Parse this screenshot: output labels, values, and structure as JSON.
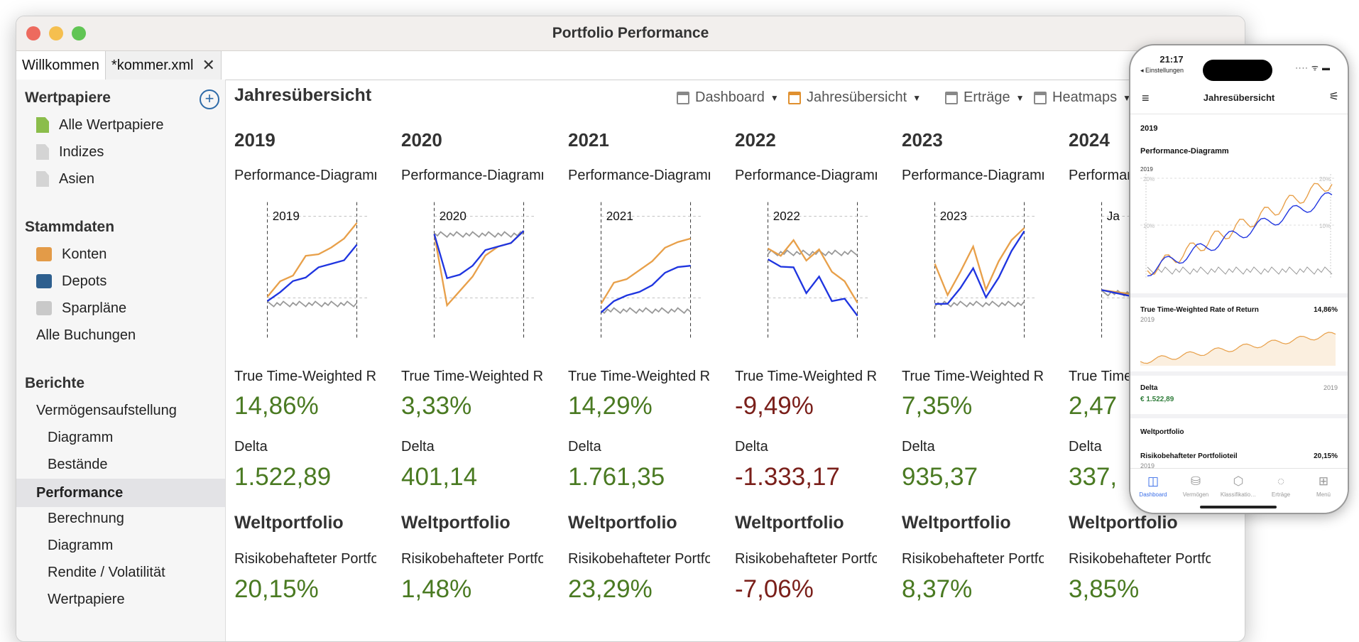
{
  "window": {
    "title": "Portfolio Performance"
  },
  "tabs": [
    {
      "label": "Willkommen"
    },
    {
      "label": "*kommer.xml"
    }
  ],
  "sidebar": {
    "wertpapiere": {
      "heading": "Wertpapiere",
      "items": [
        "Alle Wertpapiere",
        "Indizes",
        "Asien"
      ]
    },
    "stammdaten": {
      "heading": "Stammdaten",
      "items": [
        "Konten",
        "Depots",
        "Sparpläne"
      ],
      "extra": "Alle Buchungen"
    },
    "berichte": {
      "heading": "Berichte",
      "items": [
        "Vermögensaufstellung",
        "Diagramm",
        "Bestände",
        "Performance",
        "Berechnung",
        "Diagramm",
        "Rendite / Volatilität",
        "Wertpapiere"
      ]
    }
  },
  "main": {
    "title": "Jahresübersicht",
    "nav": [
      {
        "label": "Dashboard"
      },
      {
        "label": "Jahresübersicht"
      },
      {
        "label": "Erträge"
      },
      {
        "label": "Heatmaps"
      }
    ],
    "labels": {
      "chart": "Performance-Diagramm",
      "ttwror": "True Time-Weighted Rate of Return",
      "delta": "Delta",
      "group": "Weltportfolio",
      "risk": "Risikobehafteter Portfolioteil"
    },
    "years": [
      {
        "year": "2019",
        "ttwror": "14,86%",
        "delta": "1.522,89",
        "risk": "20,15%",
        "sign": "pos"
      },
      {
        "year": "2020",
        "ttwror": "3,33%",
        "delta": "401,14",
        "risk": "1,48%",
        "sign": "pos"
      },
      {
        "year": "2021",
        "ttwror": "14,29%",
        "delta": "1.761,35",
        "risk": "23,29%",
        "sign": "pos"
      },
      {
        "year": "2022",
        "ttwror": "-9,49%",
        "delta": "-1.333,17",
        "risk": "-7,06%",
        "sign": "neg"
      },
      {
        "year": "2023",
        "ttwror": "7,35%",
        "delta": "935,37",
        "risk": "8,37%",
        "sign": "pos"
      },
      {
        "year": "2024",
        "ttwror": "2,47",
        "delta": "337,",
        "risk": "3,85%",
        "sign": "pos",
        "chart_label": "Ja"
      }
    ],
    "colors": {
      "positive": "#4a7a22",
      "negative": "#7a1f1a",
      "series_orange": "#e8a04a",
      "series_blue": "#1f35e0",
      "series_grey": "#9a9a9a"
    }
  },
  "phone": {
    "time": "21:17",
    "back": "◂ Einstellungen",
    "signal": "···· ᯤ ▬",
    "title": "Jahresübersicht",
    "year": "2019",
    "chart_title": "Performance-Diagramm",
    "chart_year": "2019",
    "chart_pct_top_left": "20%",
    "chart_pct_top_right": "20%",
    "chart_pct_mid_left": "10%",
    "chart_pct_mid_right": "10%",
    "ttwror": {
      "label": "True Time-Weighted Rate of Return",
      "value": "14,86%",
      "sub": "2019"
    },
    "delta": {
      "label": "Delta",
      "year": "2019",
      "value": "€ 1.522,89"
    },
    "group": "Weltportfolio",
    "risk": {
      "label": "Risikobehafteter Portfolioteil",
      "value": "20,15%",
      "sub": "2019"
    },
    "tabbar": [
      {
        "label": "Dashboard",
        "icon": "◫"
      },
      {
        "label": "Vermögen",
        "icon": "⛁"
      },
      {
        "label": "Klassifikatio…",
        "icon": "⬡"
      },
      {
        "label": "Erträge",
        "icon": "◌"
      },
      {
        "label": "Menü",
        "icon": "⊞"
      }
    ]
  }
}
